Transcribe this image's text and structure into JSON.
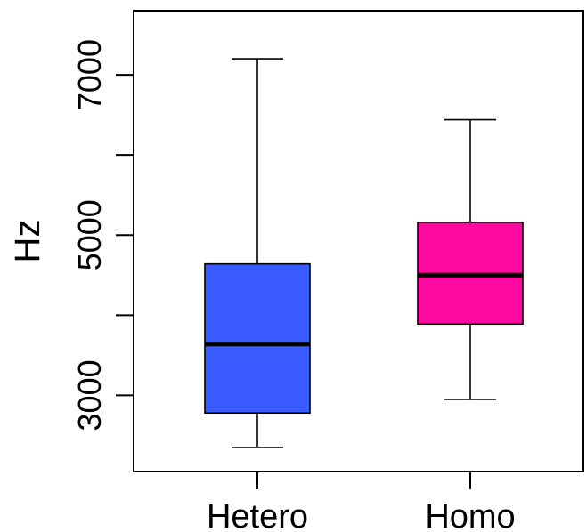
{
  "chart_data": {
    "type": "boxplot",
    "title": "",
    "xlabel": "",
    "ylabel": "Hz",
    "ylim": [
      2050,
      7800
    ],
    "yticks": [
      3000,
      4000,
      5000,
      6000,
      7000
    ],
    "ytick_labels": [
      "3000",
      "",
      "5000",
      "",
      "7000"
    ],
    "categories": [
      "Hetero",
      "Homo"
    ],
    "boxes": [
      {
        "category": "Hetero",
        "color": "#3a5bff",
        "whisker_low": 2350,
        "q1": 2780,
        "median": 3640,
        "q3": 4640,
        "whisker_high": 7200
      },
      {
        "category": "Homo",
        "color": "#ff0aa0",
        "whisker_low": 2950,
        "q1": 3890,
        "median": 4500,
        "q3": 5160,
        "whisker_high": 6440
      }
    ],
    "grid": false
  }
}
